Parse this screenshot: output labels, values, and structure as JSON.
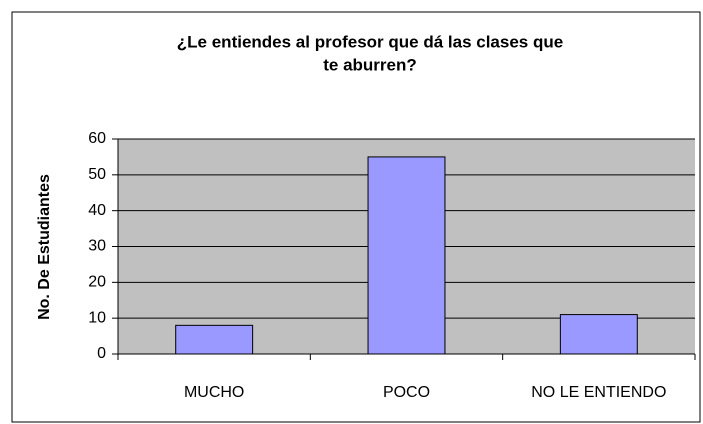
{
  "chart_data": {
    "type": "bar",
    "title": [
      "¿Le entiendes al profesor que dá las clases que",
      "te aburren?"
    ],
    "y_label": "No. De Estudiantes",
    "categories": [
      "MUCHO",
      "POCO",
      "NO LE ENTIENDO"
    ],
    "values": [
      8,
      55,
      11
    ],
    "color": "#9999ff",
    "ylim": [
      0,
      60
    ],
    "yticks": [
      0,
      10,
      20,
      30,
      40,
      50,
      60
    ],
    "grid": true
  }
}
